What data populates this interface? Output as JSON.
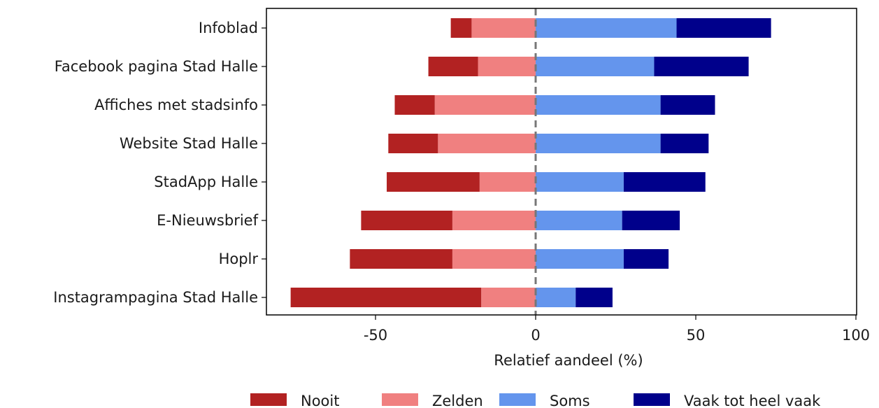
{
  "chart_data": {
    "type": "bar",
    "orientation": "horizontal",
    "stacked": "diverging",
    "title": "",
    "xlabel": "Relatief aandeel (%)",
    "ylabel": "",
    "xlim": [
      -83,
      100
    ],
    "xticks": [
      -50,
      0,
      50,
      100
    ],
    "xtick_labels": [
      "-50",
      "0",
      "50",
      "100"
    ],
    "zero_line": "dashed",
    "grid": false,
    "legend_position": "bottom",
    "categories": [
      "Infoblad",
      "Facebook pagina Stad Halle",
      "Affiches met stadsinfo",
      "Website Stad Halle",
      "StadApp Halle",
      "E-Nieuwsbrief",
      "Hoplr",
      "Instagrampagina Stad Halle"
    ],
    "series": [
      {
        "name": "Nooit",
        "color": "#b22222",
        "side": "negative",
        "values": [
          6.5,
          15.5,
          12.5,
          15.5,
          29,
          28.5,
          32,
          59.5
        ]
      },
      {
        "name": "Zelden",
        "color": "#f08080",
        "side": "negative",
        "values": [
          20,
          18,
          31.5,
          30.5,
          17.5,
          26,
          26,
          17
        ]
      },
      {
        "name": "Soms",
        "color": "#6495ed",
        "side": "positive",
        "values": [
          44,
          37,
          39,
          39,
          27.5,
          27,
          27.5,
          12.5
        ]
      },
      {
        "name": "Vaak tot heel vaak",
        "color": "#00008b",
        "side": "positive",
        "values": [
          29.5,
          29.5,
          17,
          15,
          25.5,
          18,
          14,
          11.5
        ]
      }
    ]
  }
}
